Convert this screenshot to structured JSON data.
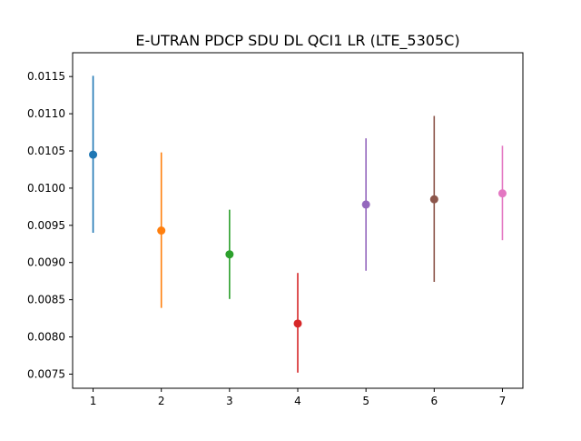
{
  "chart_data": {
    "type": "errorbar",
    "title": "E-UTRAN PDCP SDU DL QCI1 LR (LTE_5305C)",
    "xlabel": "",
    "ylabel": "",
    "xlim": [
      0.7,
      7.3
    ],
    "ylim": [
      0.00731,
      0.01182
    ],
    "grid": false,
    "x_ticks": [
      1,
      2,
      3,
      4,
      5,
      6,
      7
    ],
    "y_ticks": [
      0.0075,
      0.008,
      0.0085,
      0.009,
      0.0095,
      0.01,
      0.0105,
      0.011,
      0.0115
    ],
    "y_tick_labels": [
      "0.0075",
      "0.0080",
      "0.0085",
      "0.0090",
      "0.0095",
      "0.0100",
      "0.0105",
      "0.0110",
      "0.0115"
    ],
    "points": [
      {
        "x": 1,
        "y": 0.01045,
        "low": 0.0094,
        "high": 0.01151,
        "color": "#1f77b4"
      },
      {
        "x": 2,
        "y": 0.00943,
        "low": 0.00839,
        "high": 0.01048,
        "color": "#ff7f0e"
      },
      {
        "x": 3,
        "y": 0.00911,
        "low": 0.00851,
        "high": 0.00971,
        "color": "#2ca02c"
      },
      {
        "x": 4,
        "y": 0.00818,
        "low": 0.00752,
        "high": 0.00886,
        "color": "#d62728"
      },
      {
        "x": 5,
        "y": 0.00978,
        "low": 0.00889,
        "high": 0.01067,
        "color": "#9467bd"
      },
      {
        "x": 6,
        "y": 0.00985,
        "low": 0.00874,
        "high": 0.01097,
        "color": "#8c564b"
      },
      {
        "x": 7,
        "y": 0.00993,
        "low": 0.0093,
        "high": 0.01057,
        "color": "#e377c2"
      }
    ]
  }
}
